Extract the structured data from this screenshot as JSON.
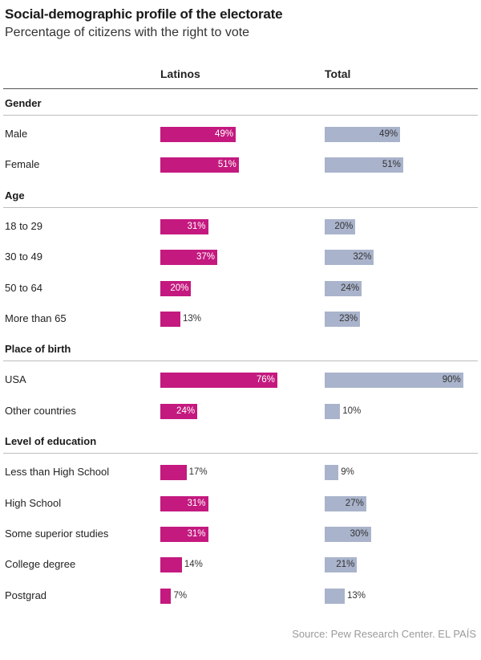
{
  "title": "Social-demographic profile of the electorate",
  "subtitle": "Percentage of citizens with the right to vote",
  "source": "Source: Pew Research Center. EL PAÍS",
  "colors": {
    "latinos": "#c4197f",
    "total": "#a9b3cb"
  },
  "chart_data": {
    "type": "bar",
    "orientation": "horizontal",
    "unit": "%",
    "series": [
      {
        "name": "Latinos",
        "color": "#c4197f"
      },
      {
        "name": "Total",
        "color": "#a9b3cb"
      }
    ],
    "groups": [
      {
        "label": "Gender",
        "rows": [
          {
            "label": "Male",
            "latinos": 49,
            "total": 49
          },
          {
            "label": "Female",
            "latinos": 51,
            "total": 51
          }
        ]
      },
      {
        "label": "Age",
        "rows": [
          {
            "label": "18 to 29",
            "latinos": 31,
            "total": 20
          },
          {
            "label": "30 to 49",
            "latinos": 37,
            "total": 32
          },
          {
            "label": "50 to 64",
            "latinos": 20,
            "total": 24
          },
          {
            "label": "More than 65",
            "latinos": 13,
            "total": 23
          }
        ]
      },
      {
        "label": "Place of birth",
        "rows": [
          {
            "label": "USA",
            "latinos": 76,
            "total": 90
          },
          {
            "label": "Other countries",
            "latinos": 24,
            "total": 10
          }
        ]
      },
      {
        "label": "Level of education",
        "rows": [
          {
            "label": "Less than High School",
            "latinos": 17,
            "total": 9
          },
          {
            "label": "High School",
            "latinos": 31,
            "total": 27
          },
          {
            "label": "Some superior studies",
            "latinos": 31,
            "total": 30
          },
          {
            "label": "College degree",
            "latinos": 14,
            "total": 21
          },
          {
            "label": "Postgrad",
            "latinos": 7,
            "total": 13
          }
        ]
      }
    ]
  }
}
